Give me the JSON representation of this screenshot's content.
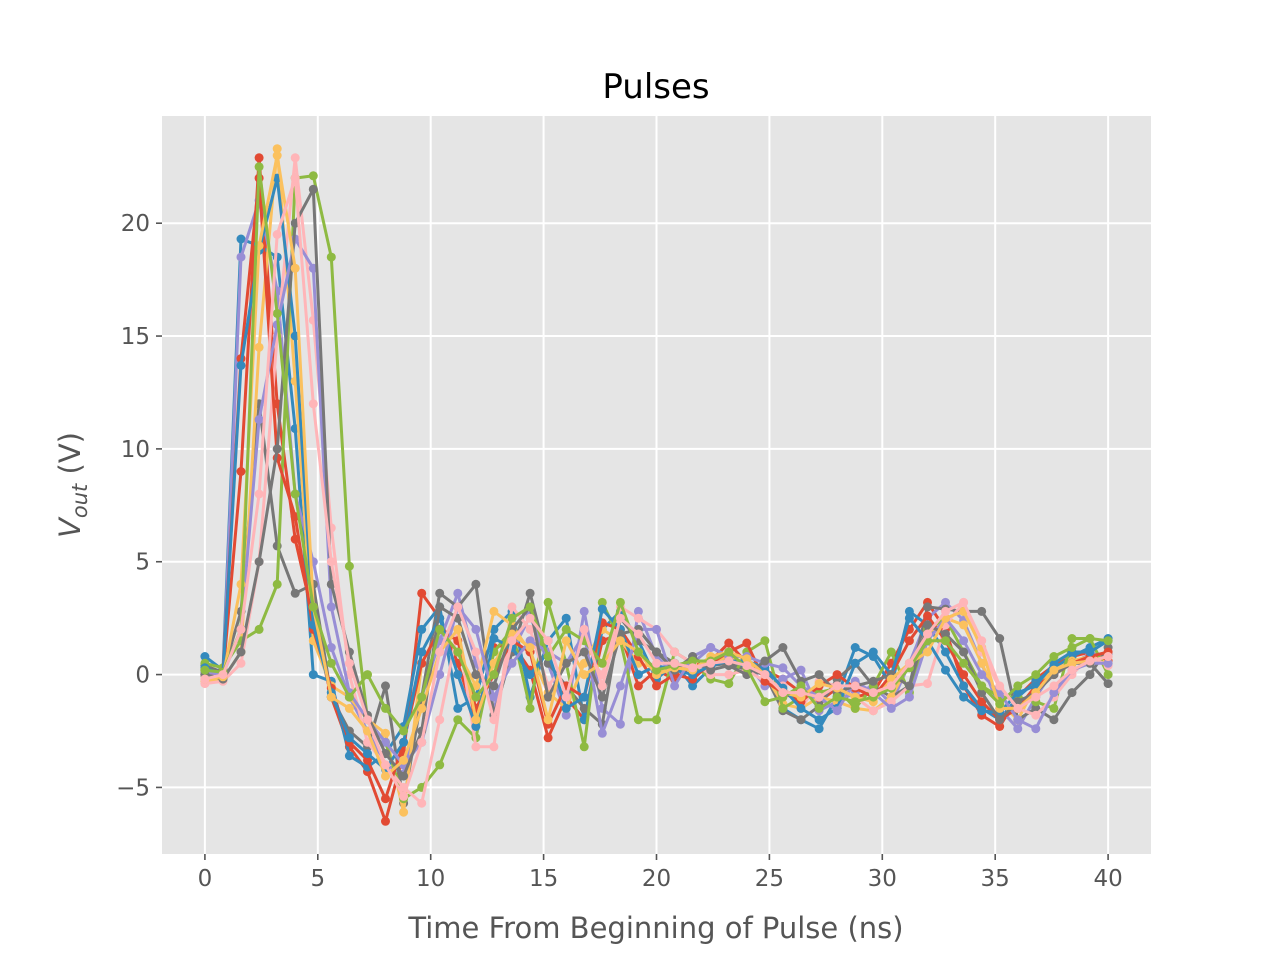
{
  "chart_data": {
    "type": "line",
    "title": "Pulses",
    "xlabel": "Time From Beginning of Pulse (ns)",
    "ylabel": "V_out (V)",
    "ylabel_parts": {
      "v": "V",
      "sub": "out",
      "unit": " (V)"
    },
    "xlim": [
      -1.9,
      41.9
    ],
    "ylim": [
      -7.95,
      24.75
    ],
    "xticks": [
      0,
      5,
      10,
      15,
      20,
      25,
      30,
      35,
      40
    ],
    "xtick_labels": [
      "0",
      "5",
      "10",
      "15",
      "20",
      "25",
      "30",
      "35",
      "40"
    ],
    "yticks": [
      -5,
      0,
      5,
      10,
      15,
      20
    ],
    "ytick_labels": [
      "−5",
      "0",
      "5",
      "10",
      "15",
      "20"
    ],
    "grid": true,
    "background": "#e5e5e5",
    "marker": "circle",
    "x": [
      0,
      0.8,
      1.6,
      2.4,
      3.2,
      4.0,
      4.8,
      5.6,
      6.4,
      7.2,
      8.0,
      8.8,
      9.6,
      10.4,
      11.2,
      12.0,
      12.8,
      13.6,
      14.4,
      15.2,
      16.0,
      16.8,
      17.6,
      18.4,
      19.2,
      20.0,
      20.8,
      21.6,
      22.4,
      23.2,
      24.0,
      24.8,
      25.6,
      26.4,
      27.2,
      28.0,
      28.8,
      29.6,
      30.4,
      31.2,
      32.0,
      32.8,
      33.6,
      34.4,
      35.2,
      36.0,
      36.8,
      37.6,
      38.4,
      39.2,
      40.0
    ],
    "series": [
      {
        "color": "#E24A33",
        "values": [
          0.2,
          0.0,
          9.0,
          22.9,
          12.0,
          6.0,
          2.5,
          -1.0,
          -3.2,
          -4.3,
          -6.5,
          -3.5,
          3.6,
          2.5,
          0.5,
          -2.0,
          1.2,
          1.4,
          0.2,
          -2.8,
          -1.0,
          -2.0,
          1.5,
          1.8,
          -0.5,
          0.2,
          -0.2,
          0.4,
          0.6,
          1.4,
          0.5,
          0.2,
          -0.2,
          -0.8,
          -1.2,
          -0.6,
          -1.0,
          -0.8,
          0.5,
          2.0,
          3.2,
          2.0,
          -0.5,
          -1.8,
          -2.3,
          -1.0,
          -0.2,
          0.4,
          0.8,
          1.0,
          0.6
        ]
      },
      {
        "color": "#348ABD",
        "values": [
          0.8,
          0.2,
          19.3,
          19.0,
          18.5,
          10.9,
          0.0,
          -0.3,
          -3.6,
          -4.1,
          -3.5,
          -2.3,
          2.0,
          3.0,
          -1.5,
          -1.0,
          2.0,
          2.8,
          -1.0,
          1.5,
          2.5,
          -2.0,
          2.0,
          2.8,
          1.5,
          -0.2,
          0.5,
          -0.5,
          0.3,
          0.8,
          0.2,
          0.5,
          -1.5,
          -2.0,
          -2.4,
          -1.0,
          1.2,
          0.8,
          -0.5,
          2.8,
          2.2,
          1.0,
          -0.5,
          -1.5,
          -2.0,
          -1.0,
          -0.3,
          0.3,
          0.8,
          1.2,
          1.6
        ]
      },
      {
        "color": "#988ED5",
        "values": [
          0.0,
          -0.2,
          18.5,
          21.0,
          17.0,
          8.0,
          5.0,
          1.2,
          -1.0,
          -2.5,
          -4.0,
          -4.4,
          -1.0,
          1.5,
          3.6,
          0.5,
          -1.5,
          1.0,
          2.6,
          0.5,
          -1.8,
          2.8,
          -1.5,
          -2.2,
          2.8,
          0.8,
          0.0,
          0.5,
          1.2,
          0.8,
          0.5,
          -0.5,
          -0.2,
          0.2,
          -1.6,
          -1.2,
          -0.8,
          -0.5,
          -1.3,
          0.5,
          2.5,
          3.2,
          2.4,
          0.5,
          -1.5,
          -2.4,
          -1.0,
          0.2,
          0.5,
          0.9,
          0.9
        ]
      },
      {
        "color": "#777777",
        "values": [
          0.4,
          0.1,
          2.8,
          12.0,
          5.7,
          3.6,
          4.0,
          -1.0,
          -2.5,
          -3.2,
          -0.5,
          -5.7,
          -1.0,
          3.6,
          3.0,
          4.0,
          -1.8,
          1.0,
          3.6,
          0.5,
          -0.5,
          -1.5,
          -2.2,
          2.5,
          1.5,
          1.0,
          0.5,
          0.2,
          0.4,
          0.5,
          0.2,
          0.0,
          -1.6,
          -2.0,
          -1.4,
          -0.2,
          0.5,
          -0.5,
          -1.0,
          -0.5,
          3.0,
          2.9,
          2.8,
          2.8,
          1.6,
          -2.0,
          -1.5,
          -2.0,
          -0.8,
          0.0,
          1.2
        ]
      },
      {
        "color": "#FBC15E",
        "values": [
          -0.3,
          -0.2,
          1.0,
          14.5,
          23.3,
          13.0,
          1.5,
          -0.5,
          -1.0,
          -2.0,
          -2.6,
          -6.1,
          0.5,
          2.0,
          1.0,
          -0.5,
          2.8,
          2.2,
          1.0,
          -0.8,
          -1.5,
          0.5,
          2.0,
          1.5,
          0.5,
          0.3,
          0.0,
          0.6,
          0.5,
          0.8,
          0.5,
          0.0,
          -1.3,
          -1.5,
          -1.0,
          -1.2,
          -1.5,
          -1.6,
          -1.0,
          0.5,
          1.8,
          2.5,
          2.2,
          0.5,
          -1.2,
          -2.0,
          -0.5,
          0.2,
          0.6,
          0.8,
          0.5
        ]
      },
      {
        "color": "#8EBA42",
        "values": [
          0.5,
          0.3,
          1.5,
          2.0,
          4.0,
          22.0,
          22.1,
          18.5,
          4.8,
          -2.0,
          -3.0,
          -5.5,
          -5.0,
          -4.0,
          -2.0,
          -2.8,
          1.0,
          2.0,
          -1.5,
          3.2,
          0.5,
          -3.2,
          3.2,
          1.5,
          -2.0,
          -2.0,
          1.0,
          0.5,
          -0.2,
          -0.4,
          1.0,
          1.5,
          -1.5,
          -1.0,
          -0.8,
          -0.6,
          -1.5,
          -0.5,
          1.0,
          -0.8,
          2.0,
          2.5,
          1.0,
          -0.5,
          -1.0,
          -1.0,
          -1.2,
          -1.5,
          1.6,
          1.6,
          0.0
        ]
      },
      {
        "color": "#FFB5B8",
        "values": [
          -0.4,
          -0.3,
          0.5,
          5.0,
          15.0,
          22.9,
          15.7,
          6.5,
          0.0,
          -3.0,
          -4.0,
          -5.0,
          -5.7,
          -2.0,
          2.0,
          -3.2,
          -3.2,
          3.0,
          2.0,
          -0.5,
          0.5,
          1.0,
          0.0,
          3.0,
          2.5,
          2.0,
          1.0,
          0.5,
          0.0,
          0.0,
          0.2,
          -0.3,
          -0.5,
          -1.5,
          -0.3,
          -0.5,
          -1.0,
          -1.6,
          -1.2,
          -0.5,
          -0.4,
          2.2,
          3.2,
          1.0,
          -0.6,
          -1.5,
          -1.8,
          -1.0,
          0.0,
          0.8,
          0.4
        ]
      },
      {
        "color": "#E24A33",
        "values": [
          0.0,
          0.1,
          14.0,
          22.0,
          9.6,
          7.0,
          2.0,
          -0.6,
          -3.0,
          -3.8,
          -5.5,
          -3.0,
          0.5,
          2.0,
          1.5,
          -1.5,
          0.0,
          1.5,
          1.0,
          -2.2,
          -0.5,
          -1.0,
          2.3,
          2.0,
          0.8,
          -0.5,
          0.0,
          -0.2,
          0.5,
          1.0,
          1.4,
          -0.3,
          -0.8,
          -1.2,
          -0.5,
          0.0,
          -0.6,
          -1.0,
          0.0,
          1.5,
          2.6,
          1.5,
          0.0,
          -1.2,
          -2.0,
          -1.5,
          -0.5,
          0.0,
          0.5,
          0.8,
          1.0
        ]
      },
      {
        "color": "#348ABD",
        "values": [
          0.3,
          0.0,
          13.7,
          18.8,
          22.0,
          15.0,
          2.2,
          -0.8,
          -2.8,
          -3.5,
          -4.2,
          -3.0,
          1.0,
          2.5,
          0.0,
          -2.3,
          1.6,
          1.2,
          0.0,
          1.0,
          -1.5,
          -1.0,
          2.9,
          2.0,
          0.0,
          0.4,
          0.2,
          0.0,
          0.4,
          0.6,
          0.6,
          0.3,
          -0.6,
          -1.5,
          -2.0,
          -1.5,
          0.5,
          1.0,
          0.0,
          2.5,
          1.5,
          0.2,
          -1.0,
          -1.6,
          -1.7,
          -0.8,
          -0.5,
          0.5,
          1.0,
          1.0,
          1.5
        ]
      },
      {
        "color": "#988ED5",
        "values": [
          0.1,
          0.0,
          2.0,
          11.3,
          15.5,
          19.3,
          18.0,
          3.0,
          -0.8,
          -2.0,
          -3.0,
          -4.0,
          -3.0,
          0.0,
          3.0,
          2.0,
          -1.0,
          0.5,
          1.5,
          1.0,
          0.5,
          1.8,
          -2.6,
          -0.5,
          2.0,
          2.0,
          -0.5,
          0.8,
          1.2,
          0.8,
          0.8,
          0.5,
          0.3,
          -0.5,
          -1.0,
          -1.6,
          -0.3,
          -0.8,
          -1.5,
          -1.0,
          1.5,
          2.5,
          1.5,
          0.0,
          -0.8,
          -2.0,
          -2.4,
          -0.8,
          0.2,
          0.5,
          0.5
        ]
      },
      {
        "color": "#777777",
        "values": [
          0.0,
          -0.2,
          1.0,
          5.0,
          10.0,
          20.0,
          21.5,
          4.0,
          1.0,
          -1.8,
          -3.5,
          -4.5,
          -2.5,
          3.0,
          2.5,
          0.0,
          -0.5,
          2.0,
          3.0,
          -1.0,
          0.5,
          1.0,
          -1.0,
          1.8,
          2.0,
          1.0,
          0.2,
          0.8,
          0.2,
          0.4,
          0.0,
          0.6,
          1.2,
          -0.3,
          0.0,
          -0.8,
          -0.5,
          -0.3,
          0.0,
          -0.5,
          2.2,
          1.8,
          1.0,
          -0.8,
          -2.0,
          -1.2,
          -0.8,
          0.0,
          0.5,
          0.5,
          -0.4
        ]
      },
      {
        "color": "#FBC15E",
        "values": [
          -0.2,
          -0.1,
          4.0,
          19.0,
          23.0,
          18.0,
          3.0,
          -1.0,
          -1.5,
          -2.5,
          -4.5,
          -3.8,
          -1.5,
          1.0,
          2.0,
          -2.0,
          0.5,
          1.8,
          1.2,
          -2.0,
          1.5,
          0.0,
          0.5,
          1.5,
          1.0,
          0.0,
          0.3,
          0.2,
          0.8,
          1.0,
          0.7,
          0.0,
          -0.8,
          -1.0,
          -0.4,
          -0.6,
          -1.0,
          -1.2,
          -0.2,
          0.5,
          1.0,
          2.5,
          2.8,
          1.2,
          -1.5,
          -1.5,
          -0.8,
          0.2,
          0.5,
          0.6,
          0.8
        ]
      },
      {
        "color": "#8EBA42",
        "values": [
          0.2,
          0.1,
          2.0,
          22.5,
          16.0,
          8.0,
          3.0,
          0.5,
          -1.0,
          0.0,
          -1.5,
          -2.5,
          -1.0,
          2.0,
          1.0,
          -1.0,
          0.0,
          2.5,
          3.0,
          0.8,
          2.0,
          1.5,
          0.5,
          3.2,
          1.0,
          0.2,
          0.4,
          0.6,
          0.6,
          1.0,
          0.3,
          -1.2,
          -1.0,
          -0.5,
          -1.5,
          -1.0,
          -1.2,
          -1.0,
          -0.6,
          0.3,
          1.5,
          1.5,
          0.5,
          -0.5,
          -1.3,
          -0.5,
          0.0,
          0.8,
          1.2,
          1.6,
          1.5
        ]
      },
      {
        "color": "#FFB5B8",
        "values": [
          -0.2,
          0.0,
          2.0,
          8.0,
          19.5,
          22.0,
          12.0,
          5.0,
          0.5,
          -2.0,
          -4.0,
          -5.4,
          -3.0,
          1.0,
          3.0,
          1.0,
          -2.0,
          1.5,
          2.5,
          1.5,
          -1.0,
          2.0,
          -0.5,
          2.5,
          1.8,
          0.5,
          0.5,
          0.3,
          0.5,
          0.6,
          0.4,
          0.0,
          -0.8,
          -0.8,
          -1.0,
          -0.5,
          -0.5,
          -0.8,
          -0.5,
          0.5,
          1.8,
          2.8,
          3.2,
          1.5,
          -0.5,
          -1.5,
          -1.0,
          -0.5,
          0.2,
          0.6,
          0.8
        ]
      }
    ]
  }
}
